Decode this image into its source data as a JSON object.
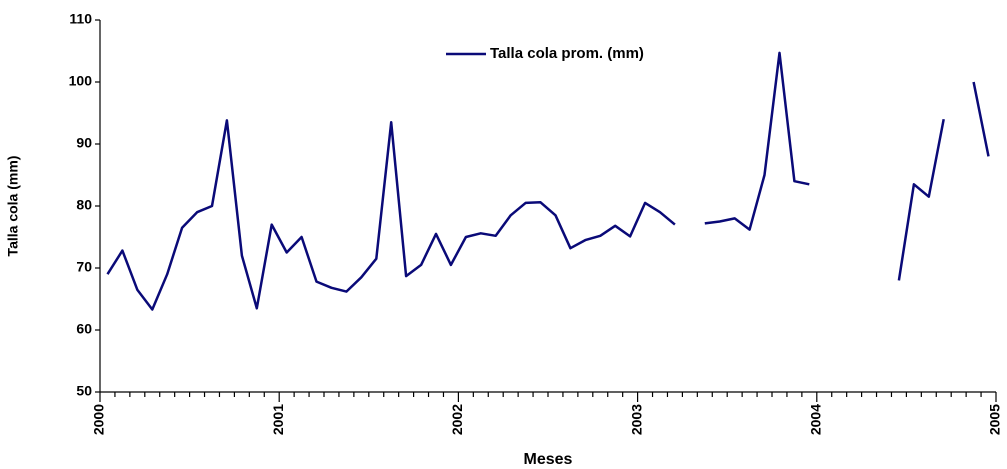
{
  "chart_data": {
    "type": "line",
    "x_label": "Meses",
    "y_label": "Talla cola (mm)",
    "x": [
      2000.042,
      2000.125,
      2000.208,
      2000.292,
      2000.375,
      2000.458,
      2000.542,
      2000.625,
      2000.708,
      2000.792,
      2000.875,
      2000.958,
      2001.042,
      2001.125,
      2001.208,
      2001.292,
      2001.375,
      2001.458,
      2001.542,
      2001.625,
      2001.708,
      2001.792,
      2001.875,
      2001.958,
      2002.042,
      2002.125,
      2002.208,
      2002.292,
      2002.375,
      2002.458,
      2002.542,
      2002.625,
      2002.708,
      2002.792,
      2002.875,
      2002.958,
      2003.042,
      2003.125,
      2003.208,
      2003.292,
      2003.375,
      2003.458,
      2003.542,
      2003.625,
      2003.708,
      2003.792,
      2003.875,
      2003.958,
      2004.042,
      2004.125,
      2004.208,
      2004.292,
      2004.375,
      2004.458,
      2004.542,
      2004.625,
      2004.708,
      2004.792,
      2004.875,
      2004.958
    ],
    "series": [
      {
        "name": "Talla cola prom. (mm)",
        "color": "#0a0a78",
        "values": [
          69,
          72.8,
          66.5,
          63.3,
          69,
          76.5,
          79,
          80,
          93.8,
          72,
          63.5,
          77,
          72.5,
          75,
          67.8,
          66.8,
          66.2,
          68.5,
          71.5,
          93.5,
          68.7,
          70.5,
          75.5,
          70.5,
          75,
          75.6,
          75.2,
          78.5,
          80.5,
          80.6,
          78.5,
          73.2,
          74.5,
          75.2,
          76.8,
          75.1,
          80.5,
          79,
          77,
          null,
          77.2,
          77.5,
          78,
          76.2,
          85,
          104.7,
          84,
          83.5,
          null,
          null,
          null,
          null,
          null,
          68,
          83.5,
          81.5,
          94,
          null,
          100,
          88
        ]
      }
    ],
    "xlim": [
      2000,
      2005
    ],
    "xticks": [
      2000,
      2001,
      2002,
      2003,
      2004,
      2005
    ],
    "ylim": [
      50,
      110
    ],
    "yticks": [
      50,
      60,
      70,
      80,
      90,
      100,
      110
    ],
    "legend": "top"
  }
}
